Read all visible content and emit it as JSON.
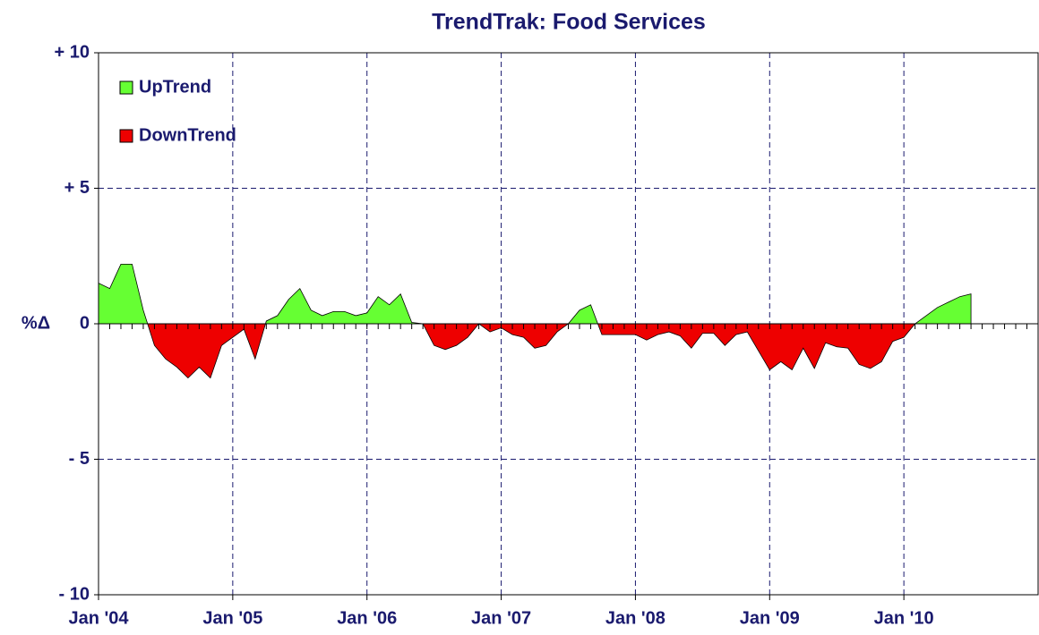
{
  "chart_data": {
    "type": "area",
    "title": "TrendTrak: Food Services",
    "ylabel": "%Δ",
    "x": [
      "2004-01",
      "2004-02",
      "2004-03",
      "2004-04",
      "2004-05",
      "2004-06",
      "2004-07",
      "2004-08",
      "2004-09",
      "2004-10",
      "2004-11",
      "2004-12",
      "2005-01",
      "2005-02",
      "2005-03",
      "2005-04",
      "2005-05",
      "2005-06",
      "2005-07",
      "2005-08",
      "2005-09",
      "2005-10",
      "2005-11",
      "2005-12",
      "2006-01",
      "2006-02",
      "2006-03",
      "2006-04",
      "2006-05",
      "2006-06",
      "2006-07",
      "2006-08",
      "2006-09",
      "2006-10",
      "2006-11",
      "2006-12",
      "2007-01",
      "2007-02",
      "2007-03",
      "2007-04",
      "2007-05",
      "2007-06",
      "2007-07",
      "2007-08",
      "2007-09",
      "2007-10",
      "2007-11",
      "2007-12",
      "2008-01",
      "2008-02",
      "2008-03",
      "2008-04",
      "2008-05",
      "2008-06",
      "2008-07",
      "2008-08",
      "2008-09",
      "2008-10",
      "2008-11",
      "2008-12",
      "2009-01",
      "2009-02",
      "2009-03",
      "2009-04",
      "2009-05",
      "2009-06",
      "2009-07",
      "2009-08",
      "2009-09",
      "2009-10",
      "2009-11",
      "2009-12",
      "2010-01",
      "2010-02",
      "2010-03",
      "2010-04",
      "2010-05",
      "2010-06",
      "2010-07"
    ],
    "values": [
      1.5,
      1.3,
      2.2,
      2.2,
      0.5,
      -0.8,
      -1.3,
      -1.6,
      -2.0,
      -1.6,
      -2.0,
      -0.8,
      -0.5,
      -0.2,
      -1.3,
      0.1,
      0.3,
      0.9,
      1.3,
      0.5,
      0.3,
      0.45,
      0.45,
      0.3,
      0.4,
      1.0,
      0.7,
      1.1,
      0.05,
      0,
      -0.8,
      -0.95,
      -0.8,
      -0.5,
      0,
      -0.3,
      -0.15,
      -0.4,
      -0.5,
      -0.9,
      -0.8,
      -0.3,
      0,
      0.5,
      0.7,
      -0.4,
      -0.4,
      -0.4,
      -0.4,
      -0.6,
      -0.4,
      -0.3,
      -0.45,
      -0.9,
      -0.35,
      -0.35,
      -0.8,
      -0.4,
      -0.3,
      -1.0,
      -1.7,
      -1.4,
      -1.7,
      -0.9,
      -1.65,
      -0.7,
      -0.85,
      -0.9,
      -1.5,
      -1.65,
      -1.4,
      -0.65,
      -0.5,
      0,
      0.3,
      0.6,
      0.8,
      1.0,
      1.1
    ],
    "legend": [
      {
        "name": "UpTrend",
        "color": "#66ff33"
      },
      {
        "name": "DownTrend",
        "color": "#ee0000"
      }
    ],
    "xlim": [
      "2004-01",
      "2011-01"
    ],
    "xticks": [
      {
        "value": "2004-01",
        "label": "Jan '04"
      },
      {
        "value": "2005-01",
        "label": "Jan '05"
      },
      {
        "value": "2006-01",
        "label": "Jan '06"
      },
      {
        "value": "2007-01",
        "label": "Jan '07"
      },
      {
        "value": "2008-01",
        "label": "Jan '08"
      },
      {
        "value": "2009-01",
        "label": "Jan '09"
      },
      {
        "value": "2010-01",
        "label": "Jan '10"
      }
    ],
    "ylim": [
      -10,
      10
    ],
    "yticks": [
      {
        "value": -10,
        "label": "- 10"
      },
      {
        "value": -5,
        "label": "- 5"
      },
      0,
      {
        "value": 5,
        "label": "+ 5"
      },
      {
        "value": 10,
        "label": "+ 10"
      }
    ],
    "grid": true
  }
}
